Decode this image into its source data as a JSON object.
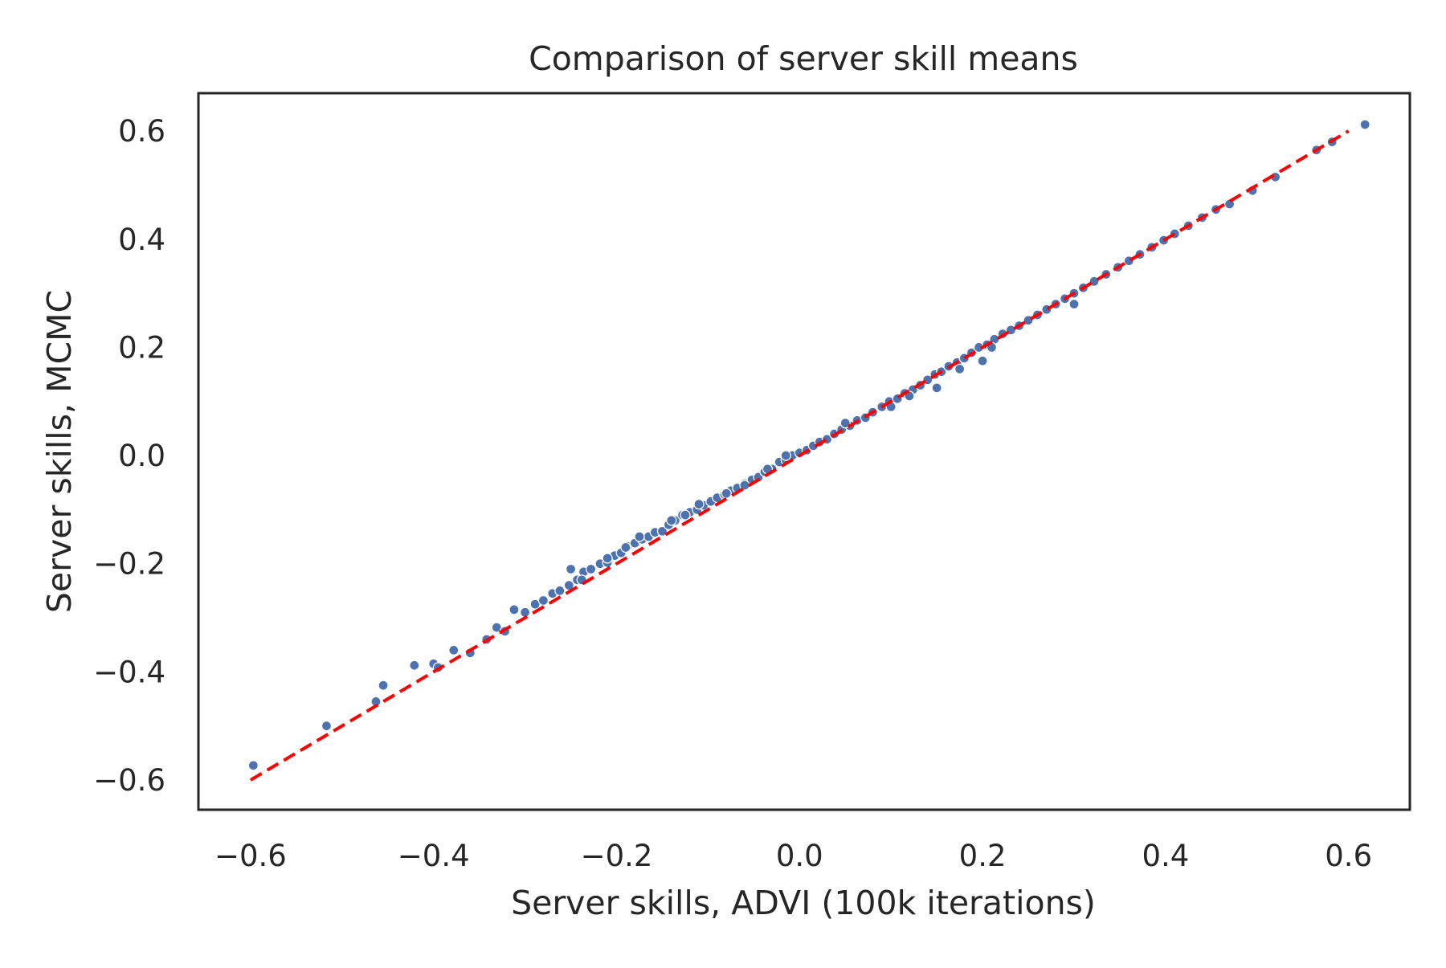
{
  "chart_data": {
    "type": "scatter",
    "title": "Comparison of server skill means",
    "xlabel": "Server skills, ADVI (100k iterations)",
    "ylabel": "Server skills, MCMC",
    "xlim": [
      -0.657,
      0.667
    ],
    "ylim": [
      -0.655,
      0.67
    ],
    "xticks": [
      -0.6,
      -0.4,
      -0.2,
      0.0,
      0.2,
      0.4,
      0.6
    ],
    "xtick_labels": [
      "−0.6",
      "−0.4",
      "−0.2",
      "0.0",
      "0.2",
      "0.4",
      "0.6"
    ],
    "yticks": [
      -0.6,
      -0.4,
      -0.2,
      0.0,
      0.2,
      0.4,
      0.6
    ],
    "ytick_labels": [
      "−0.6",
      "−0.4",
      "−0.2",
      "0.0",
      "0.2",
      "0.4",
      "0.6"
    ],
    "grid": false,
    "legend": "none",
    "reference_line": {
      "style": "dashed",
      "color": "#ff0000",
      "x": [
        -0.6,
        0.6
      ],
      "y": [
        -0.6,
        0.6
      ]
    },
    "series": [
      {
        "color": "#4c72b0",
        "x": [
          -0.597,
          -0.517,
          -0.463,
          -0.455,
          -0.421,
          -0.4,
          -0.395,
          -0.378,
          -0.36,
          -0.342,
          -0.331,
          -0.322,
          -0.312,
          -0.3,
          -0.289,
          -0.28,
          -0.27,
          -0.262,
          -0.252,
          -0.243,
          -0.236,
          -0.228,
          -0.218,
          -0.21,
          -0.202,
          -0.195,
          -0.188,
          -0.18,
          -0.172,
          -0.165,
          -0.158,
          -0.15,
          -0.143,
          -0.136,
          -0.128,
          -0.12,
          -0.112,
          -0.105,
          -0.097,
          -0.09,
          -0.082,
          -0.075,
          -0.068,
          -0.06,
          -0.052,
          -0.045,
          -0.038,
          -0.03,
          -0.022,
          -0.015,
          -0.008,
          0.0,
          0.008,
          0.015,
          0.022,
          0.03,
          0.038,
          0.046,
          0.055,
          0.063,
          0.072,
          0.08,
          0.09,
          0.098,
          0.107,
          0.115,
          0.124,
          0.132,
          0.14,
          0.148,
          0.155,
          0.163,
          0.172,
          0.18,
          0.188,
          0.196,
          0.205,
          0.213,
          0.222,
          0.231,
          0.24,
          0.25,
          0.26,
          0.27,
          0.28,
          0.29,
          0.3,
          0.31,
          0.322,
          0.335,
          0.348,
          0.36,
          0.372,
          0.385,
          0.398,
          0.41,
          0.425,
          0.44,
          0.455,
          0.47,
          0.495,
          0.52,
          0.565,
          0.582,
          0.618,
          -0.25,
          -0.238,
          -0.21,
          -0.19,
          -0.175,
          -0.14,
          -0.125,
          -0.11,
          -0.08,
          -0.06,
          -0.035,
          -0.015,
          0.05,
          0.1,
          0.12,
          0.15,
          0.175,
          0.2,
          0.21,
          0.3
        ],
        "y": [
          -0.573,
          -0.5,
          -0.455,
          -0.425,
          -0.388,
          -0.385,
          -0.392,
          -0.36,
          -0.365,
          -0.34,
          -0.318,
          -0.325,
          -0.285,
          -0.29,
          -0.275,
          -0.268,
          -0.255,
          -0.25,
          -0.24,
          -0.23,
          -0.215,
          -0.21,
          -0.2,
          -0.198,
          -0.185,
          -0.18,
          -0.168,
          -0.162,
          -0.155,
          -0.15,
          -0.142,
          -0.14,
          -0.128,
          -0.12,
          -0.11,
          -0.105,
          -0.1,
          -0.092,
          -0.085,
          -0.078,
          -0.072,
          -0.065,
          -0.06,
          -0.052,
          -0.045,
          -0.04,
          -0.03,
          -0.025,
          -0.012,
          -0.008,
          0.0,
          0.005,
          0.01,
          0.018,
          0.025,
          0.03,
          0.04,
          0.048,
          0.055,
          0.065,
          0.07,
          0.08,
          0.09,
          0.1,
          0.105,
          0.115,
          0.122,
          0.13,
          0.14,
          0.15,
          0.155,
          0.165,
          0.172,
          0.18,
          0.19,
          0.2,
          0.205,
          0.215,
          0.225,
          0.232,
          0.24,
          0.25,
          0.26,
          0.27,
          0.28,
          0.29,
          0.3,
          0.31,
          0.322,
          0.335,
          0.348,
          0.36,
          0.372,
          0.385,
          0.398,
          0.41,
          0.425,
          0.44,
          0.455,
          0.465,
          0.49,
          0.515,
          0.565,
          0.58,
          0.612,
          -0.21,
          -0.23,
          -0.19,
          -0.17,
          -0.15,
          -0.12,
          -0.11,
          -0.09,
          -0.07,
          -0.055,
          -0.025,
          0.0,
          0.06,
          0.09,
          0.11,
          0.125,
          0.16,
          0.175,
          0.2,
          0.28
        ]
      }
    ]
  }
}
